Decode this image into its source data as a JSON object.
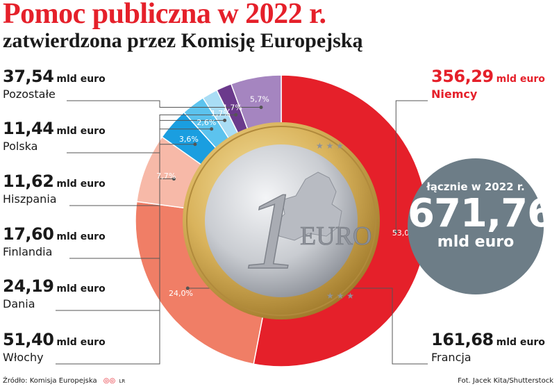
{
  "header": {
    "title": "Pomoc publiczna w 2022 r.",
    "subtitle": "zatwierdzona przez Komisję Europejską"
  },
  "total": {
    "caption": "łącznie w 2022 r.",
    "value": "671,76",
    "unit": "mld euro"
  },
  "footer": {
    "source": "Źródło: Komisja Europejska",
    "credit": "Fot. Jacek Kita/Shutterstock",
    "logo_text": "LR"
  },
  "coin": {
    "numeral": "1",
    "text": "EURO"
  },
  "colors": {
    "accent": "#e5202a",
    "niemcy": "#e5202a",
    "francja": "#f07e66",
    "wlochy": "#f7b9a8",
    "dania": "#1a9ee0",
    "finlandia": "#5cc3ee",
    "hiszpania": "#a9ddf5",
    "polska": "#6b3a8c",
    "pozostale": "#a585c0",
    "total_circle": "#6d7d87"
  },
  "chart_data": {
    "type": "pie",
    "title": "Pomoc publiczna w 2022 r.",
    "subtitle": "zatwierdzona przez Komisję Europejską",
    "unit": "mld euro",
    "total": 671.76,
    "slices": [
      {
        "key": "niemcy",
        "name": "Niemcy",
        "value": 356.29,
        "value_label": "356,29",
        "unit": "mld euro",
        "percent": 53.0,
        "percent_label": "53,0%"
      },
      {
        "key": "francja",
        "name": "Francja",
        "value": 161.68,
        "value_label": "161,68",
        "unit": "mld euro",
        "percent": 24.0,
        "percent_label": "24,0%"
      },
      {
        "key": "wlochy",
        "name": "Włochy",
        "value": 51.4,
        "value_label": "51,40",
        "unit": "mld euro",
        "percent": 7.7,
        "percent_label": "7,7%"
      },
      {
        "key": "dania",
        "name": "Dania",
        "value": 24.19,
        "value_label": "24,19",
        "unit": "mld euro",
        "percent": 3.6,
        "percent_label": "3,6%"
      },
      {
        "key": "finlandia",
        "name": "Finlandia",
        "value": 17.6,
        "value_label": "17,60",
        "unit": "mld euro",
        "percent": 2.6,
        "percent_label": "2,6%"
      },
      {
        "key": "hiszpania",
        "name": "Hiszpania",
        "value": 11.62,
        "value_label": "11,62",
        "unit": "mld euro",
        "percent": 1.7,
        "percent_label": "1,7%"
      },
      {
        "key": "polska",
        "name": "Polska",
        "value": 11.44,
        "value_label": "11,44",
        "unit": "mld euro",
        "percent": 1.7,
        "percent_label": "1,7%"
      },
      {
        "key": "pozostale",
        "name": "Pozostałe",
        "value": 37.54,
        "value_label": "37,54",
        "unit": "mld euro",
        "percent": 5.7,
        "percent_label": "5,7%"
      }
    ]
  }
}
